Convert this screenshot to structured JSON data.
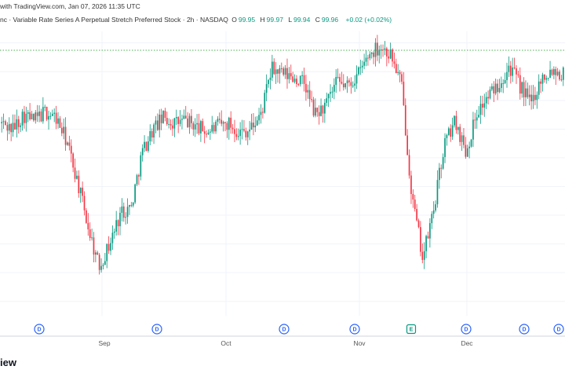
{
  "header": {
    "published": "with TradingView.com, Jan 07, 2026 11:35 UTC",
    "title": "nc · Variable Rate Series A Perpetual Stretch Preferred Stock · 2h · NASDAQ",
    "ohlc": {
      "open_label": "O",
      "open": "99.95",
      "high_label": "H",
      "high": "99.97",
      "low_label": "L",
      "low": "99.94",
      "close_label": "C",
      "close": "99.96",
      "change": "+0.02 (+0.02%)"
    }
  },
  "footer": {
    "logo_text": "iew"
  },
  "colors": {
    "up": "#089981",
    "down": "#f23645",
    "reference_line": "#4caf50",
    "event_dividend": "#2962ff",
    "event_earnings": "#089981",
    "grid": "#f0f3fa"
  },
  "chart_data": {
    "type": "candlestick",
    "interval": "2h",
    "x_labels": [
      "Sep",
      "Oct",
      "Nov",
      "Dec"
    ],
    "event_markers": [
      {
        "label": "D",
        "type": "dividend"
      },
      {
        "label": "D",
        "type": "dividend"
      },
      {
        "label": "D",
        "type": "dividend"
      },
      {
        "label": "D",
        "type": "dividend"
      },
      {
        "label": "E",
        "type": "earnings"
      },
      {
        "label": "D",
        "type": "dividend"
      },
      {
        "label": "D",
        "type": "dividend"
      },
      {
        "label": "D",
        "type": "dividend"
      }
    ],
    "reference_line": "dotted horizontal line at the period high",
    "grid": true,
    "price_path": [
      99.2,
      99.0,
      99.5,
      99.3,
      99.6,
      99.4,
      98.6,
      97.2,
      95.6,
      94.2,
      95.0,
      96.1,
      96.3,
      98.2,
      99.0,
      99.4,
      99.2,
      99.3,
      99.1,
      98.9,
      99.1,
      99.2,
      98.9,
      99.0,
      99.5,
      101.1,
      100.9,
      100.8,
      100.6,
      99.5,
      99.8,
      100.6,
      100.5,
      100.9,
      101.6,
      101.9,
      101.6,
      100.6,
      96.6,
      94.5,
      96.2,
      98.5,
      99.3,
      98.2,
      99.6,
      100.1,
      100.6,
      101.2,
      100.5,
      99.9,
      100.8,
      101.1,
      100.9
    ],
    "up_color_name": "green",
    "down_color_name": "red"
  }
}
